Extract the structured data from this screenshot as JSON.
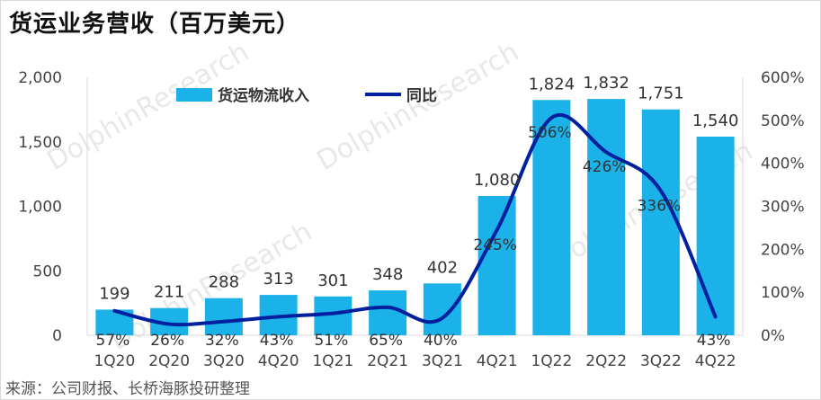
{
  "page": {
    "title": "货运业务营收（百万美元）",
    "source": "来源：公司财报、长桥海豚投研整理"
  },
  "colors": {
    "bar": "#1AB2E8",
    "line": "#00209F",
    "axis": "#d9d9d9"
  },
  "chart_data": {
    "type": "bar",
    "categories": [
      "1Q20",
      "2Q20",
      "3Q20",
      "4Q20",
      "1Q21",
      "2Q21",
      "3Q21",
      "4Q21",
      "1Q22",
      "2Q22",
      "3Q22",
      "4Q22"
    ],
    "series": [
      {
        "name": "货运物流收入",
        "type": "bar",
        "axis": "left",
        "values": [
          199,
          211,
          288,
          313,
          301,
          348,
          402,
          1080,
          1824,
          1832,
          1751,
          1540
        ],
        "labels": [
          "199",
          "211",
          "288",
          "313",
          "301",
          "348",
          "402",
          "1,080",
          "1,824",
          "1,832",
          "1,751",
          "1,540"
        ]
      },
      {
        "name": "同比",
        "type": "line",
        "axis": "right",
        "values": [
          57,
          26,
          32,
          43,
          51,
          65,
          40,
          245,
          506,
          426,
          336,
          43
        ],
        "labels": [
          "57%",
          "26%",
          "32%",
          "43%",
          "51%",
          "65%",
          "40%",
          "245%",
          "506%",
          "426%",
          "336%",
          "43%"
        ]
      }
    ],
    "y_left": {
      "min": 0,
      "max": 2000,
      "ticks": [
        0,
        500,
        1000,
        1500,
        2000
      ],
      "tick_labels": [
        "0",
        "500",
        "1,000",
        "1,500",
        "2,000"
      ]
    },
    "y_right": {
      "min": 0,
      "max": 600,
      "ticks": [
        0,
        100,
        200,
        300,
        400,
        500,
        600
      ],
      "tick_labels": [
        "0%",
        "100%",
        "200%",
        "300%",
        "400%",
        "500%",
        "600%"
      ]
    },
    "grid": false,
    "legend_position": "top-left"
  }
}
